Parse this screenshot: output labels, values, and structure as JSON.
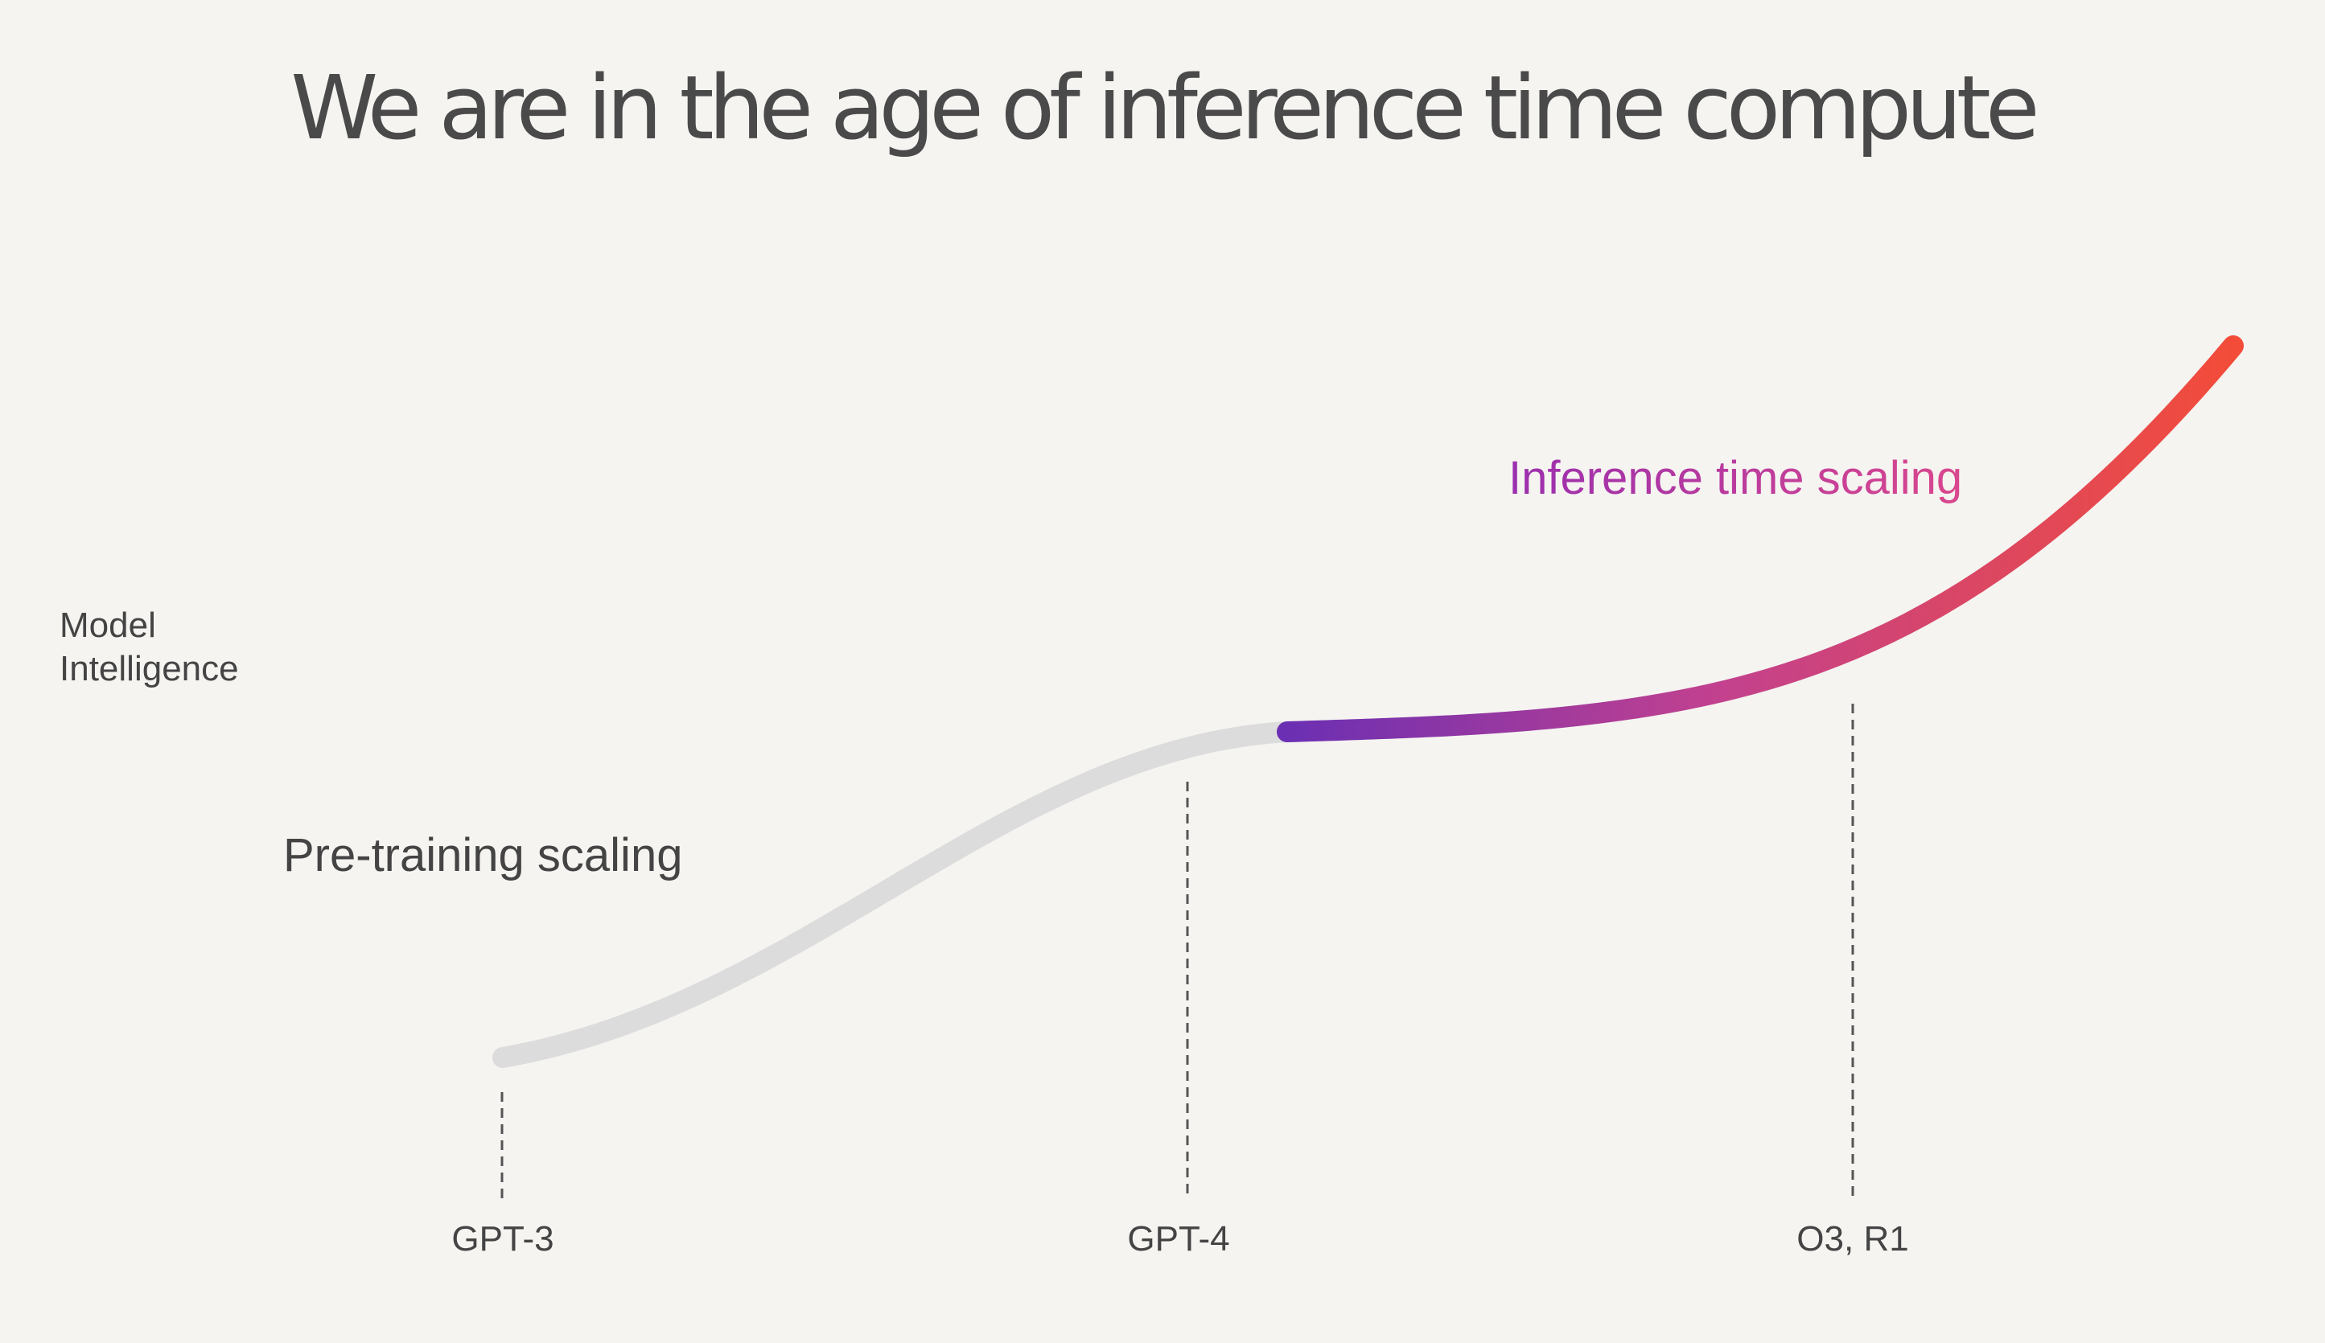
{
  "title": "We are in the age of inference time compute",
  "y_axis_label": [
    "Model",
    "Intelligence"
  ],
  "annotations": {
    "pretraining": "Pre-training scaling",
    "inference": "Inference time scaling"
  },
  "milestones": [
    {
      "label": "GPT-3"
    },
    {
      "label": "GPT-4"
    },
    {
      "label": "O3, R1"
    }
  ],
  "colors": {
    "background": "#f5f4f1",
    "title": "#4a4a4a",
    "text": "#444444",
    "pretraining_curve": "#dcdcdc",
    "gradient_start": "#6b2fb3",
    "gradient_mid": "#c2418f",
    "gradient_end": "#f34c38"
  }
}
